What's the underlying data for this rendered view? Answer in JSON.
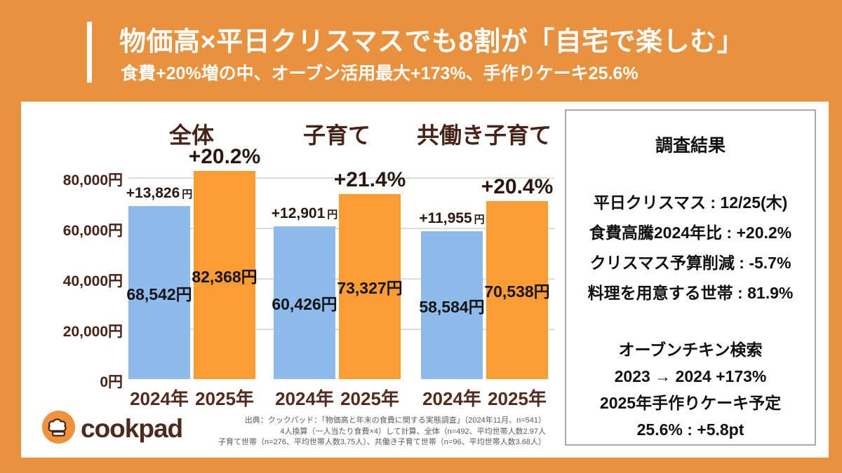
{
  "header": {
    "title": "物価高×平日クリスマスでも8割が「自宅で楽しむ」",
    "subtitle": "食費+20%増の中、オーブン活用最大+173%、手作りケーキ25.6%"
  },
  "chart_data": {
    "type": "bar",
    "ymax": 80000,
    "ylim": [
      0,
      80000
    ],
    "yticks": [
      "80,000円",
      "60,000円",
      "40,000円",
      "20,000円",
      "0円"
    ],
    "ytick_values": [
      80000,
      60000,
      40000,
      20000,
      0
    ],
    "categories": [
      "2024年",
      "2025年"
    ],
    "grid": "horizontal",
    "groups": [
      {
        "label": "全体",
        "bars": [
          {
            "year": "2024年",
            "value": 68542,
            "value_label": "68,542円",
            "diff_number": "+13,826",
            "diff_unit": "円",
            "color": "#8FBAEC"
          },
          {
            "year": "2025年",
            "value": 82368,
            "value_label": "82,368円",
            "pct_label": "+20.2%",
            "color": "#FB9D33"
          }
        ]
      },
      {
        "label": "子育て",
        "bars": [
          {
            "year": "2024年",
            "value": 60426,
            "value_label": "60,426円",
            "diff_number": "+12,901",
            "diff_unit": "円",
            "color": "#8FBAEC"
          },
          {
            "year": "2025年",
            "value": 73327,
            "value_label": "73,327円",
            "pct_label": "+21.4%",
            "color": "#FB9D33"
          }
        ]
      },
      {
        "label": "共働き子育て",
        "bars": [
          {
            "year": "2024年",
            "value": 58584,
            "value_label": "58,584円",
            "diff_number": "+11,955",
            "diff_unit": "円",
            "color": "#8FBAEC"
          },
          {
            "year": "2025年",
            "value": 70538,
            "value_label": "70,538円",
            "pct_label": "+20.4%",
            "color": "#FB9D33"
          }
        ]
      }
    ]
  },
  "results_panel": {
    "title": "調査結果",
    "stats": [
      "平日クリスマス : 12/25(木)",
      "食費高騰2024年比 : +20.2%",
      "クリスマス予算削減 : -5.7%",
      "料理を用意する世帯 : 81.9%"
    ],
    "highlights": [
      "オーブンチキン検索",
      "2023 → 2024 +173%",
      "2025年手作りケーキ予定",
      "25.6% : +5.8pt"
    ]
  },
  "footer": {
    "logo_text": "cookpad",
    "source_lines": [
      "出典：クックパッド：「物価高と年末の食費に関する実態調査」（2024年11月、n=541）",
      "4人換算（一人当たり食費×4）して計算、全体（n=492、平均世帯人数2.97人",
      "子育て世帯（n=276、平均世帯人数3.75人）、共働き子育て世帯（n=96、平均世帯人数3.68人）"
    ]
  },
  "colors": {
    "background_orange": "#E8913F",
    "bar_2024_blue": "#8FBAEC",
    "bar_2025_orange": "#FB9D33",
    "logo_orange": "#F0913B",
    "chart_text_brown": "#472217",
    "white": "#ffffff"
  }
}
